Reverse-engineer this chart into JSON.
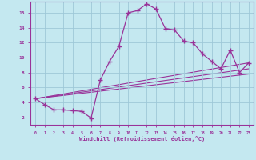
{
  "xlabel": "Windchill (Refroidissement éolien,°C)",
  "background_color": "#c4e8f0",
  "grid_color": "#9ec8d8",
  "line_color": "#993399",
  "x_hours": [
    0,
    1,
    2,
    3,
    4,
    5,
    6,
    7,
    8,
    9,
    10,
    11,
    12,
    13,
    14,
    15,
    16,
    17,
    18,
    19,
    20,
    21,
    22,
    23
  ],
  "y_values": [
    4.5,
    3.7,
    3.0,
    3.0,
    2.9,
    2.8,
    1.9,
    7.0,
    9.5,
    11.5,
    16.0,
    16.3,
    17.2,
    16.5,
    13.9,
    13.7,
    12.2,
    12.0,
    10.5,
    9.5,
    8.5,
    11.0,
    8.0,
    9.3
  ],
  "xlim": [
    -0.5,
    23.5
  ],
  "ylim": [
    1.0,
    17.5
  ],
  "ytick_values": [
    2,
    4,
    6,
    8,
    10,
    12,
    14,
    16
  ],
  "extra_lines": [
    {
      "x": [
        0,
        23
      ],
      "y": [
        4.5,
        9.3
      ]
    },
    {
      "x": [
        0,
        23
      ],
      "y": [
        4.5,
        7.8
      ]
    },
    {
      "x": [
        0,
        23
      ],
      "y": [
        4.5,
        8.5
      ]
    }
  ]
}
